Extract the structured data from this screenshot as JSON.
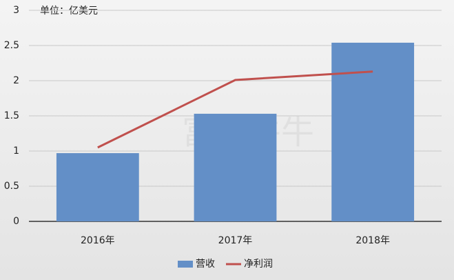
{
  "chart_data": {
    "type": "bar",
    "annotation": "单位：亿美元",
    "watermark": "富途牛牛",
    "categories": [
      "2016年",
      "2017年",
      "2018年"
    ],
    "series": [
      {
        "name": "营收",
        "type": "bar",
        "color": "#638fc7",
        "values": [
          0.97,
          1.53,
          2.54
        ]
      },
      {
        "name": "净利润",
        "type": "line",
        "color": "#c0504d",
        "values": [
          1.05,
          2.01,
          2.13
        ]
      }
    ],
    "ylim": [
      0,
      3
    ],
    "yticks": [
      0,
      0.5,
      1,
      1.5,
      2,
      2.5,
      3
    ],
    "grid": true,
    "legend": "bottom"
  }
}
